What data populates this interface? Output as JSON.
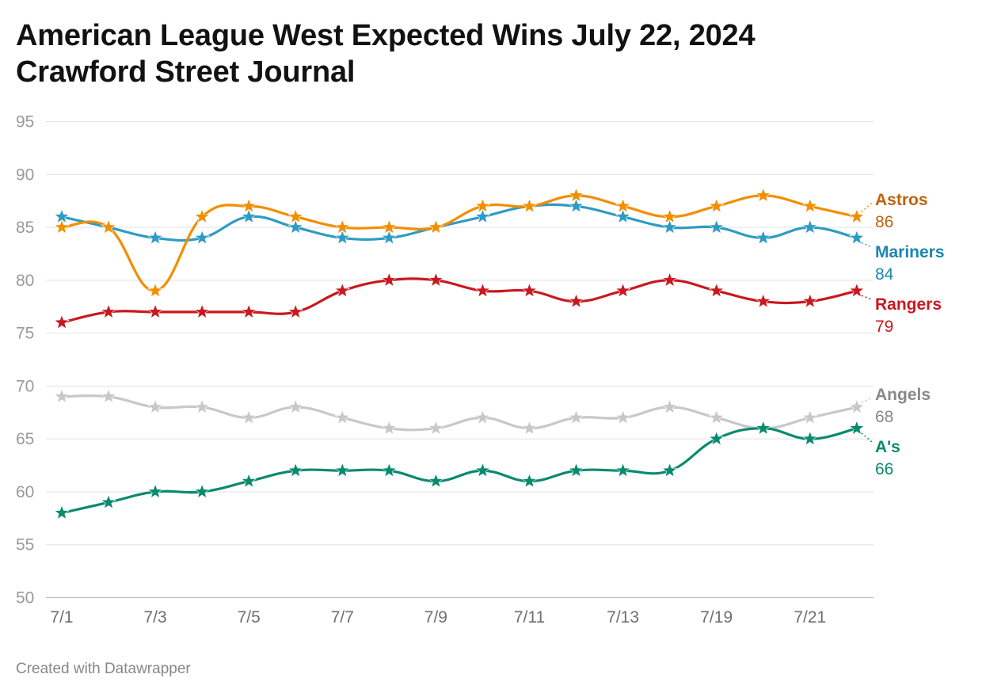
{
  "header": {
    "title_line1": "American League West Expected Wins July 22, 2024",
    "title_line2": "Crawford Street Journal"
  },
  "footer": {
    "credit": "Created with Datawrapper"
  },
  "chart_data": {
    "type": "line",
    "title": "American League West Expected Wins July 22, 2024",
    "subtitle": "Crawford Street Journal",
    "x": [
      "7/1",
      "7/2",
      "7/3",
      "7/4",
      "7/5",
      "7/6",
      "7/7",
      "7/8",
      "7/9",
      "7/10",
      "7/11",
      "7/12",
      "7/13",
      "7/14",
      "7/19",
      "7/20",
      "7/21",
      "7/22"
    ],
    "x_tick_labels": [
      "7/1",
      "7/3",
      "7/5",
      "7/7",
      "7/9",
      "7/11",
      "7/13",
      "7/19",
      "7/21"
    ],
    "ylim": [
      50,
      95
    ],
    "y_ticks": [
      50,
      55,
      60,
      65,
      70,
      75,
      80,
      85,
      90,
      95
    ],
    "grid": true,
    "legend": "direct labels at right end of lines",
    "marker": "star",
    "series": [
      {
        "name": "Astros",
        "end_label": "86",
        "color": "#f28e00",
        "label_color": "#c0620a",
        "values": [
          85,
          85,
          79,
          86,
          87,
          86,
          85,
          85,
          85,
          87,
          87,
          88,
          87,
          86,
          87,
          88,
          87,
          86
        ]
      },
      {
        "name": "Mariners",
        "end_label": "84",
        "color": "#2e9bc4",
        "label_color": "#1a86b0",
        "values": [
          86,
          85,
          84,
          84,
          86,
          85,
          84,
          84,
          85,
          86,
          87,
          87,
          86,
          85,
          85,
          84,
          85,
          84
        ]
      },
      {
        "name": "Rangers",
        "end_label": "79",
        "color": "#c8191f",
        "label_color": "#c8191f",
        "values": [
          76,
          77,
          77,
          77,
          77,
          77,
          79,
          80,
          80,
          79,
          79,
          78,
          79,
          80,
          79,
          78,
          78,
          79
        ]
      },
      {
        "name": "Angels",
        "end_label": "68",
        "color": "#c8c8c8",
        "label_color": "#888888",
        "values": [
          69,
          69,
          68,
          68,
          67,
          68,
          67,
          66,
          66,
          67,
          66,
          67,
          67,
          68,
          67,
          66,
          67,
          68
        ]
      },
      {
        "name": "A's",
        "end_label": "66",
        "color": "#0a8a6e",
        "label_color": "#0a8a6e",
        "values": [
          58,
          59,
          60,
          60,
          61,
          62,
          62,
          62,
          61,
          62,
          61,
          62,
          62,
          62,
          65,
          66,
          65,
          66
        ]
      }
    ]
  }
}
